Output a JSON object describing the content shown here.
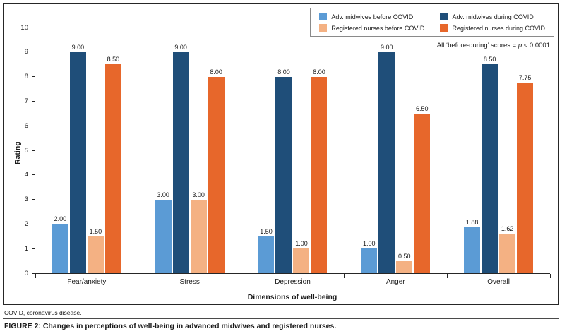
{
  "figure": {
    "annotation": {
      "prefix": "All ‘before-during’ scores = ",
      "italic": "p",
      "suffix": " < 0.0001"
    },
    "footnote": "COVID, coronavirus disease.",
    "caption_tag": "FIGURE 2:",
    "caption_text": " Changes in perceptions of well-being in advanced midwives and registered nurses."
  },
  "chart_data": {
    "type": "bar",
    "title": "",
    "categories": [
      "Fear/anxiety",
      "Stress",
      "Depression",
      "Anger",
      "Overall"
    ],
    "series": [
      {
        "name": "Adv. midwives before COVID",
        "color": "#5B9BD5",
        "values": [
          2.0,
          3.0,
          1.5,
          1.0,
          1.88
        ]
      },
      {
        "name": "Adv. midwives during COVID",
        "color": "#1F4E79",
        "values": [
          9.0,
          9.0,
          8.0,
          9.0,
          8.5
        ]
      },
      {
        "name": "Registered nurses before COVID",
        "color": "#F4B183",
        "values": [
          1.5,
          3.0,
          1.0,
          0.5,
          1.62
        ]
      },
      {
        "name": "Registered nurses during COVID",
        "color": "#E7672B",
        "values": [
          8.5,
          8.0,
          8.0,
          6.5,
          7.75
        ]
      }
    ],
    "xlabel": "Dimensions of well-being",
    "ylabel": "Rating",
    "ylim": [
      0,
      10
    ],
    "ytick_step": 1,
    "value_label_decimals": 2,
    "legend_position": "top-right",
    "grid": false
  }
}
